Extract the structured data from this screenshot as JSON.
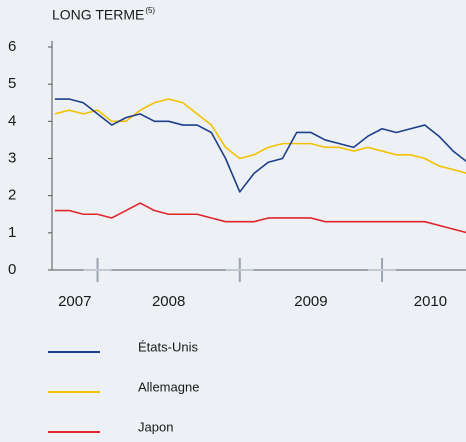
{
  "chart_data": {
    "type": "line",
    "title": "LONG TERME",
    "title_superscript": "(5)",
    "x": [
      2007.7,
      2007.8,
      2007.9,
      2008.0,
      2008.1,
      2008.2,
      2008.3,
      2008.4,
      2008.5,
      2008.6,
      2008.7,
      2008.8,
      2008.9,
      2009.0,
      2009.1,
      2009.2,
      2009.3,
      2009.4,
      2009.5,
      2009.6,
      2009.7,
      2009.8,
      2009.9,
      2010.0,
      2010.1,
      2010.2,
      2010.3,
      2010.4,
      2010.5,
      2010.6
    ],
    "xlim": [
      2007.68,
      2010.59
    ],
    "xticks": [
      {
        "value": 2007.84,
        "label": "2007"
      },
      {
        "value": 2008.5,
        "label": "2008"
      },
      {
        "value": 2009.5,
        "label": "2009"
      },
      {
        "value": 2010.34,
        "label": "2010"
      }
    ],
    "year_boundaries": [
      2008,
      2009,
      2010
    ],
    "ylim": [
      0,
      6
    ],
    "yticks": [
      0,
      1,
      2,
      3,
      4,
      5,
      6
    ],
    "series": [
      {
        "name": "États-Unis",
        "color": "#1f3f8a",
        "values": [
          4.6,
          4.6,
          4.5,
          4.2,
          3.9,
          4.1,
          4.2,
          4.0,
          4.0,
          3.9,
          3.9,
          3.7,
          3.0,
          2.1,
          2.6,
          2.9,
          3.0,
          3.7,
          3.7,
          3.5,
          3.4,
          3.3,
          3.6,
          3.8,
          3.7,
          3.8,
          3.9,
          3.6,
          3.2,
          2.9
        ]
      },
      {
        "name": "Allemagne",
        "color": "#f2c200",
        "values": [
          4.2,
          4.3,
          4.2,
          4.3,
          4.0,
          4.0,
          4.3,
          4.5,
          4.6,
          4.5,
          4.2,
          3.9,
          3.3,
          3.0,
          3.1,
          3.3,
          3.4,
          3.4,
          3.4,
          3.3,
          3.3,
          3.2,
          3.3,
          3.2,
          3.1,
          3.1,
          3.0,
          2.8,
          2.7,
          2.6
        ]
      },
      {
        "name": "Japon",
        "color": "#e0262b",
        "values": [
          1.6,
          1.6,
          1.5,
          1.5,
          1.4,
          1.6,
          1.8,
          1.6,
          1.5,
          1.5,
          1.5,
          1.4,
          1.3,
          1.3,
          1.3,
          1.4,
          1.4,
          1.4,
          1.4,
          1.3,
          1.3,
          1.3,
          1.3,
          1.3,
          1.3,
          1.3,
          1.3,
          1.2,
          1.1,
          1.0
        ]
      }
    ]
  }
}
